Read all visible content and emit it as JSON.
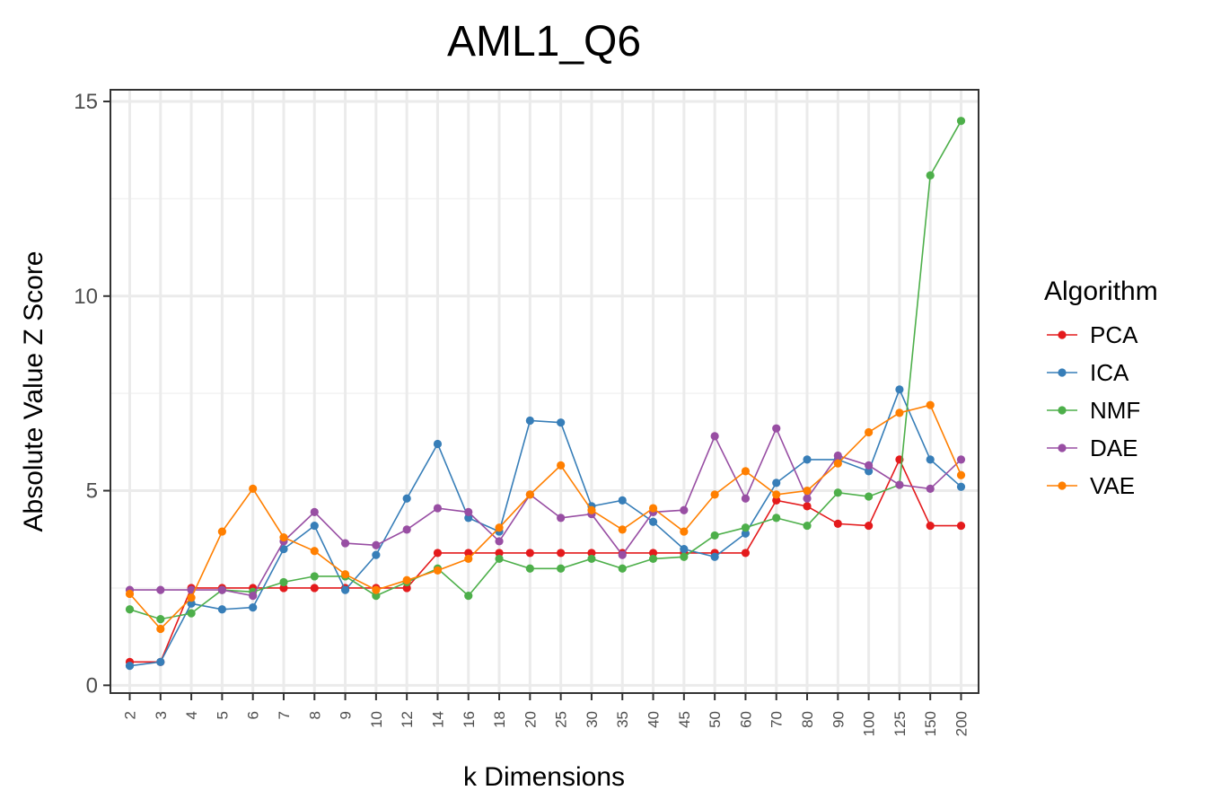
{
  "chart_data": {
    "type": "line",
    "title": "AML1_Q6",
    "xlabel": "k Dimensions",
    "ylabel": "Absolute Value Z Score",
    "ylim": [
      -0.2,
      15.3
    ],
    "yticks": [
      0,
      5,
      10,
      15
    ],
    "grid": true,
    "legend_title": "Algorithm",
    "legend_position": "right",
    "categories": [
      "2",
      "3",
      "4",
      "5",
      "6",
      "7",
      "8",
      "9",
      "10",
      "12",
      "14",
      "16",
      "18",
      "20",
      "25",
      "30",
      "35",
      "40",
      "45",
      "50",
      "60",
      "70",
      "80",
      "90",
      "100",
      "125",
      "150",
      "200"
    ],
    "series": [
      {
        "name": "PCA",
        "color": "#e41a1c",
        "values": [
          0.6,
          0.6,
          2.5,
          2.5,
          2.5,
          2.5,
          2.5,
          2.5,
          2.5,
          2.5,
          3.4,
          3.4,
          3.4,
          3.4,
          3.4,
          3.4,
          3.4,
          3.4,
          3.4,
          3.4,
          3.4,
          4.75,
          4.6,
          4.15,
          4.1,
          5.8,
          4.1,
          4.1
        ]
      },
      {
        "name": "ICA",
        "color": "#377eb8",
        "values": [
          0.5,
          0.6,
          2.1,
          1.95,
          2.0,
          3.5,
          4.1,
          2.45,
          3.35,
          4.8,
          6.2,
          4.3,
          3.95,
          6.8,
          6.75,
          4.6,
          4.75,
          4.2,
          3.5,
          3.3,
          3.9,
          5.2,
          5.8,
          5.8,
          5.5,
          7.6,
          5.8,
          5.1
        ]
      },
      {
        "name": "NMF",
        "color": "#4daf4a",
        "values": [
          1.95,
          1.7,
          1.85,
          2.45,
          2.4,
          2.65,
          2.8,
          2.8,
          2.3,
          2.65,
          3.0,
          2.3,
          3.25,
          3.0,
          3.0,
          3.25,
          3.0,
          3.25,
          3.3,
          3.85,
          4.05,
          4.3,
          4.1,
          4.95,
          4.85,
          5.15,
          13.1,
          14.5
        ]
      },
      {
        "name": "DAE",
        "color": "#984ea3",
        "values": [
          2.45,
          2.45,
          2.45,
          2.45,
          2.3,
          3.7,
          4.45,
          3.65,
          3.6,
          4.0,
          4.55,
          4.45,
          3.7,
          4.9,
          4.3,
          4.4,
          3.35,
          4.45,
          4.5,
          6.4,
          4.8,
          6.6,
          4.8,
          5.9,
          5.65,
          5.15,
          5.05,
          5.8
        ]
      },
      {
        "name": "VAE",
        "color": "#ff7f00",
        "values": [
          2.35,
          1.45,
          2.25,
          3.95,
          5.05,
          3.8,
          3.45,
          2.85,
          2.45,
          2.7,
          2.95,
          3.25,
          4.05,
          4.9,
          5.65,
          4.5,
          4.0,
          4.55,
          3.95,
          4.9,
          5.5,
          4.9,
          5.0,
          5.7,
          6.5,
          7.0,
          7.2,
          5.4
        ]
      }
    ]
  }
}
